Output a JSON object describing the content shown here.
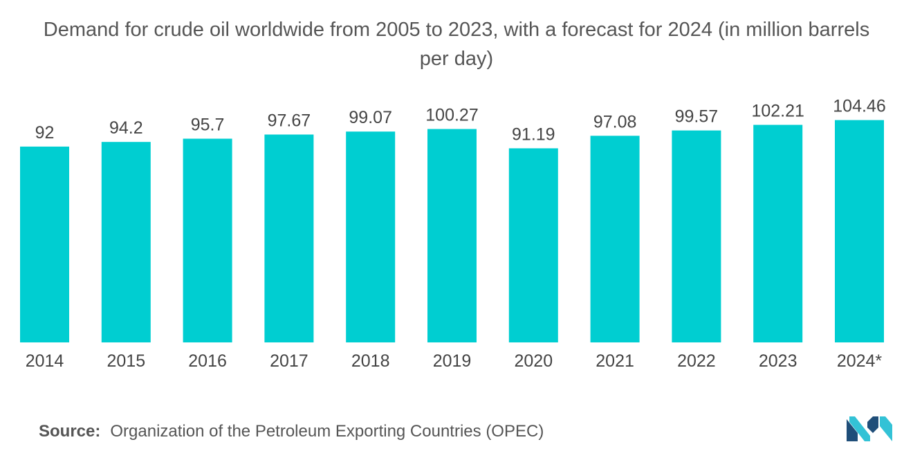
{
  "chart_data": {
    "type": "bar",
    "title": "Demand for crude oil worldwide from 2005 to 2023, with a forecast for 2024 (in million barrels per day)",
    "categories": [
      "2014",
      "2015",
      "2016",
      "2017",
      "2018",
      "2019",
      "2020",
      "2021",
      "2022",
      "2023",
      "2024*"
    ],
    "values": [
      92,
      94.2,
      95.7,
      97.67,
      99.07,
      100.27,
      91.19,
      97.08,
      99.57,
      102.21,
      104.46
    ],
    "value_labels": [
      "92",
      "94.2",
      "95.7",
      "97.67",
      "99.07",
      "100.27",
      "91.19",
      "97.08",
      "99.57",
      "102.21",
      "104.46"
    ],
    "xlabel": "",
    "ylabel": "",
    "ylim": [
      0,
      130
    ],
    "grid": false,
    "legend": "none",
    "bar_color": "#00CED1"
  },
  "source": {
    "label": "Source:",
    "text": "Organization of the Petroleum Exporting Countries (OPEC)"
  },
  "colors": {
    "bar": "#00CED1",
    "text": "#555555",
    "logo_dark": "#1f4e79",
    "logo_light": "#33c2d6"
  },
  "logo": {
    "icon": "mordor-intelligence-logo"
  }
}
